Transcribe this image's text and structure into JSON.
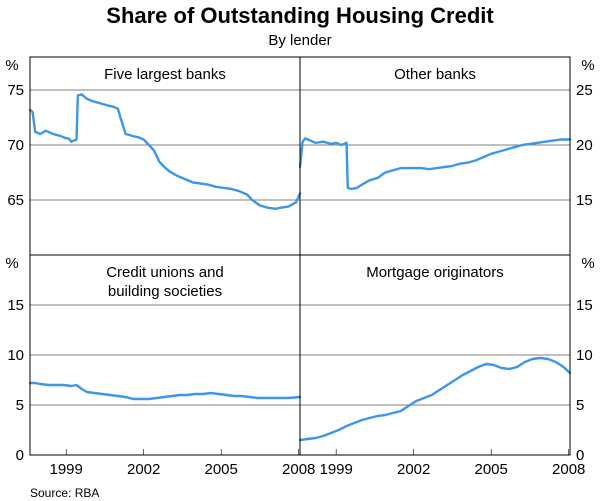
{
  "figure": {
    "title": "Share of Outstanding Housing Credit",
    "subtitle": "By lender",
    "source": "Source: RBA",
    "line_color": "#3d97e8"
  },
  "chart_data": [
    {
      "type": "line",
      "title": "Five largest banks",
      "unit": "%",
      "ylim": [
        60,
        78
      ],
      "yticks": [
        65,
        70,
        75
      ],
      "xlim": [
        1997.6,
        2008.05
      ],
      "xticks": [
        "1999",
        "2002",
        "2005",
        "2008"
      ],
      "grid": true,
      "x": [
        1997.6,
        1997.7,
        1997.8,
        1998.0,
        1998.2,
        1998.5,
        1998.8,
        1999.0,
        1999.1,
        1999.2,
        1999.4,
        1999.45,
        1999.6,
        1999.8,
        2000.0,
        2000.3,
        2000.6,
        2000.8,
        2001.0,
        2001.1,
        2001.3,
        2001.6,
        2001.8,
        2002.0,
        2002.2,
        2002.4,
        2002.6,
        2002.8,
        2003.0,
        2003.3,
        2003.6,
        2003.9,
        2004.2,
        2004.5,
        2004.8,
        2005.1,
        2005.4,
        2005.7,
        2006.0,
        2006.2,
        2006.5,
        2006.8,
        2007.1,
        2007.3,
        2007.6,
        2007.9,
        2008.05
      ],
      "values": [
        73.2,
        73.0,
        71.2,
        71.0,
        71.3,
        71.0,
        70.8,
        70.6,
        70.6,
        70.3,
        70.5,
        74.5,
        74.6,
        74.2,
        74.0,
        73.8,
        73.6,
        73.5,
        73.3,
        72.5,
        71.0,
        70.8,
        70.7,
        70.5,
        70.0,
        69.5,
        68.5,
        68.0,
        67.6,
        67.2,
        66.9,
        66.6,
        66.5,
        66.4,
        66.2,
        66.1,
        66.0,
        65.8,
        65.5,
        65.0,
        64.5,
        64.3,
        64.2,
        64.3,
        64.4,
        64.8,
        65.6
      ]
    },
    {
      "type": "line",
      "title": "Other banks",
      "unit": "%",
      "ylim": [
        10,
        28
      ],
      "yticks": [
        15,
        20,
        25
      ],
      "xlim": [
        1997.6,
        2008.05
      ],
      "xticks": [
        "1999",
        "2002",
        "2005",
        "2008"
      ],
      "grid": true,
      "x": [
        1997.6,
        1997.7,
        1997.8,
        1998.0,
        1998.2,
        1998.5,
        1998.8,
        1999.0,
        1999.2,
        1999.4,
        1999.45,
        1999.6,
        1999.8,
        2000.0,
        2000.3,
        2000.6,
        2000.9,
        2001.2,
        2001.5,
        2001.8,
        2002.0,
        2002.3,
        2002.6,
        2002.9,
        2003.2,
        2003.5,
        2003.8,
        2004.1,
        2004.4,
        2004.7,
        2005.0,
        2005.3,
        2005.6,
        2005.9,
        2006.2,
        2006.5,
        2006.8,
        2007.1,
        2007.4,
        2007.7,
        2008.05
      ],
      "values": [
        18.0,
        20.3,
        20.6,
        20.4,
        20.2,
        20.3,
        20.1,
        20.2,
        20.0,
        20.2,
        16.1,
        16.0,
        16.1,
        16.4,
        16.8,
        17.0,
        17.5,
        17.7,
        17.9,
        17.9,
        17.9,
        17.9,
        17.8,
        17.9,
        18.0,
        18.1,
        18.3,
        18.4,
        18.6,
        18.9,
        19.2,
        19.4,
        19.6,
        19.8,
        20.0,
        20.1,
        20.2,
        20.3,
        20.4,
        20.5,
        20.5
      ]
    },
    {
      "type": "line",
      "title": "Credit unions and building societies",
      "title_lines": [
        "Credit unions and",
        "building societies"
      ],
      "unit": "%",
      "ylim": [
        0,
        20
      ],
      "yticks": [
        0,
        5,
        10,
        15
      ],
      "xlim": [
        1997.6,
        2008.05
      ],
      "xticks": [
        "1999",
        "2002",
        "2005",
        "2008"
      ],
      "grid": true,
      "x": [
        1997.6,
        1997.8,
        1998.0,
        1998.3,
        1998.6,
        1998.9,
        1999.2,
        1999.4,
        1999.6,
        1999.8,
        2000.1,
        2000.4,
        2000.7,
        2001.0,
        2001.3,
        2001.6,
        2001.9,
        2002.2,
        2002.5,
        2002.8,
        2003.1,
        2003.4,
        2003.7,
        2004.0,
        2004.3,
        2004.6,
        2004.9,
        2005.2,
        2005.5,
        2005.8,
        2006.1,
        2006.4,
        2006.7,
        2007.0,
        2007.3,
        2007.6,
        2008.05
      ],
      "values": [
        7.2,
        7.2,
        7.1,
        7.0,
        7.0,
        7.0,
        6.9,
        7.0,
        6.6,
        6.3,
        6.2,
        6.1,
        6.0,
        5.9,
        5.8,
        5.6,
        5.6,
        5.6,
        5.7,
        5.8,
        5.9,
        6.0,
        6.0,
        6.1,
        6.1,
        6.2,
        6.1,
        6.0,
        5.9,
        5.9,
        5.8,
        5.7,
        5.7,
        5.7,
        5.7,
        5.7,
        5.8
      ]
    },
    {
      "type": "line",
      "title": "Mortgage originators",
      "unit": "%",
      "ylim": [
        0,
        20
      ],
      "yticks": [
        0,
        5,
        10,
        15
      ],
      "xlim": [
        1997.6,
        2008.05
      ],
      "xticks": [
        "1999",
        "2002",
        "2005",
        "2008"
      ],
      "grid": true,
      "x": [
        1997.6,
        1997.9,
        1998.2,
        1998.5,
        1998.8,
        1999.1,
        1999.4,
        1999.7,
        2000.0,
        2000.3,
        2000.6,
        2000.9,
        2001.2,
        2001.5,
        2001.8,
        2002.1,
        2002.4,
        2002.7,
        2003.0,
        2003.3,
        2003.6,
        2003.9,
        2004.2,
        2004.5,
        2004.8,
        2005.1,
        2005.4,
        2005.7,
        2006.0,
        2006.3,
        2006.6,
        2006.9,
        2007.2,
        2007.5,
        2007.8,
        2008.05
      ],
      "values": [
        1.5,
        1.6,
        1.7,
        1.9,
        2.2,
        2.5,
        2.9,
        3.2,
        3.5,
        3.7,
        3.9,
        4.0,
        4.2,
        4.4,
        4.9,
        5.4,
        5.7,
        6.0,
        6.5,
        7.0,
        7.5,
        8.0,
        8.4,
        8.8,
        9.1,
        9.0,
        8.7,
        8.6,
        8.8,
        9.3,
        9.6,
        9.7,
        9.6,
        9.3,
        8.8,
        8.2
      ]
    }
  ]
}
